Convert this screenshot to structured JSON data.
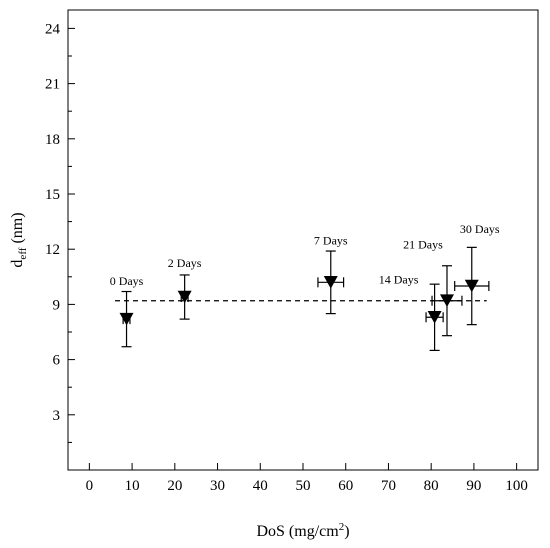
{
  "chart_data": {
    "type": "scatter",
    "xlabel": "DoS (mg/cm",
    "xlabel_sup": "2",
    "xlabel_tail": ")",
    "ylabel": "d",
    "ylabel_sub": "eff",
    "ylabel_tail": " (nm)",
    "xlim": [
      -5,
      105
    ],
    "ylim": [
      0,
      25
    ],
    "xticks": [
      "0",
      "10",
      "20",
      "30",
      "40",
      "50",
      "60",
      "70",
      "80",
      "90",
      "100"
    ],
    "xtick_values": [
      0,
      10,
      20,
      30,
      40,
      50,
      60,
      70,
      80,
      90,
      100
    ],
    "yticks": [
      "3",
      "6",
      "9",
      "12",
      "15",
      "18",
      "21",
      "24"
    ],
    "ytick_values": [
      3,
      6,
      9,
      12,
      15,
      18,
      21,
      24
    ],
    "marker": "down-triangle",
    "reference_line": {
      "y": 9.2,
      "x_start": 6,
      "x_end": 93,
      "style": "dashed"
    },
    "points": [
      {
        "label": "0 Days",
        "x": 8.7,
        "y": 8.2,
        "x_err": 0.8,
        "y_err_low": 1.5,
        "y_err_high": 1.5
      },
      {
        "label": "2 Days",
        "x": 22.3,
        "y": 9.4,
        "x_err": 0.8,
        "y_err_low": 1.2,
        "y_err_high": 1.2
      },
      {
        "label": "7 Days",
        "x": 56.5,
        "y": 10.2,
        "x_err": 3.0,
        "y_err_low": 1.7,
        "y_err_high": 1.7
      },
      {
        "label": "14 Days",
        "x": 80.8,
        "y": 8.3,
        "x_err": 2.0,
        "y_err_low": 1.8,
        "y_err_high": 1.8
      },
      {
        "label": "21 Days",
        "x": 83.7,
        "y": 9.2,
        "x_err": 3.5,
        "y_err_low": 1.9,
        "y_err_high": 1.9
      },
      {
        "label": "30 Days",
        "x": 89.5,
        "y": 10.0,
        "x_err": 4.0,
        "y_err_low": 2.1,
        "y_err_high": 2.1
      }
    ]
  }
}
